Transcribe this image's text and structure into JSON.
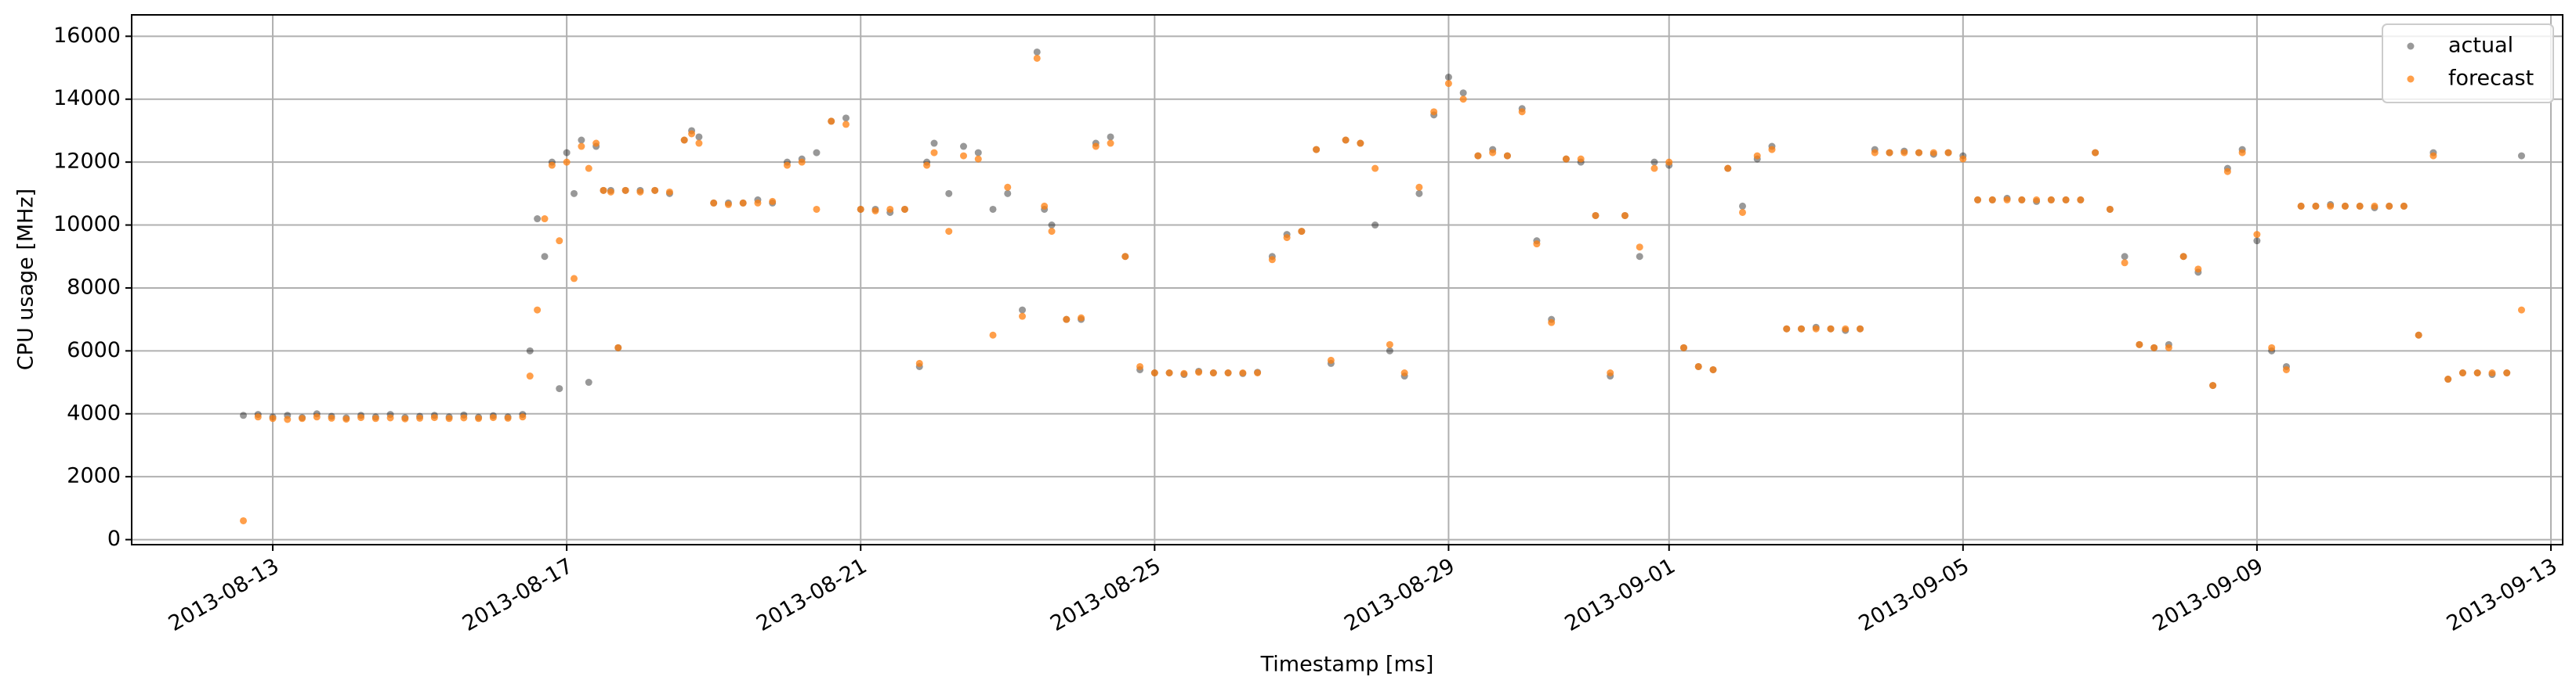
{
  "chart_data": {
    "type": "scatter",
    "xlabel": "Timestamp [ms]",
    "ylabel": "CPU usage [MHz]",
    "x": [
      1376317440000,
      1376334720000,
      1376352000000,
      1376369280000,
      1376386560000,
      1376403840000,
      1376421120000,
      1376438400000,
      1376455680000,
      1376472960000,
      1376490240000,
      1376507520000,
      1376524800000,
      1376542080000,
      1376559360000,
      1376576640000,
      1376593920000,
      1376611200000,
      1376628480000,
      1376645760000,
      1376654400000,
      1376663040000,
      1376671680000,
      1376680320000,
      1376688960000,
      1376697600000,
      1376706240000,
      1376714880000,
      1376723520000,
      1376732160000,
      1376740800000,
      1376749440000,
      1376758080000,
      1376766720000,
      1376784000000,
      1376801280000,
      1376818560000,
      1376835840000,
      1376844480000,
      1376853120000,
      1376870400000,
      1376887680000,
      1376904960000,
      1376922240000,
      1376939520000,
      1376956800000,
      1376974080000,
      1376991360000,
      1377008640000,
      1377025920000,
      1377043200000,
      1377060480000,
      1377077760000,
      1377095040000,
      1377112320000,
      1377120960000,
      1377129600000,
      1377146880000,
      1377164160000,
      1377181440000,
      1377198720000,
      1377216000000,
      1377233280000,
      1377250560000,
      1377259200000,
      1377267840000,
      1377285120000,
      1377302400000,
      1377319680000,
      1377336960000,
      1377354240000,
      1377371520000,
      1377388800000,
      1377406080000,
      1377423360000,
      1377440640000,
      1377457920000,
      1377475200000,
      1377492480000,
      1377509760000,
      1377527040000,
      1377544320000,
      1377561600000,
      1377578880000,
      1377596160000,
      1377613440000,
      1377630720000,
      1377648000000,
      1377665280000,
      1377682560000,
      1377699840000,
      1377717120000,
      1377734400000,
      1377751680000,
      1377768960000,
      1377786240000,
      1377803520000,
      1377820800000,
      1377838080000,
      1377855360000,
      1377872640000,
      1377889920000,
      1377907200000,
      1377924480000,
      1377941760000,
      1377959040000,
      1377976320000,
      1377993600000,
      1378010880000,
      1378028160000,
      1378045440000,
      1378062720000,
      1378080000000,
      1378097280000,
      1378114560000,
      1378131840000,
      1378149120000,
      1378166400000,
      1378183680000,
      1378200960000,
      1378218240000,
      1378235520000,
      1378252800000,
      1378270080000,
      1378287360000,
      1378304640000,
      1378321920000,
      1378339200000,
      1378356480000,
      1378373760000,
      1378391040000,
      1378408320000,
      1378425600000,
      1378442880000,
      1378460160000,
      1378477440000,
      1378494720000,
      1378512000000,
      1378529280000,
      1378546560000,
      1378563840000,
      1378581120000,
      1378598400000,
      1378615680000,
      1378632960000,
      1378650240000,
      1378667520000,
      1378684800000,
      1378702080000,
      1378719360000,
      1378736640000,
      1378753920000,
      1378771200000,
      1378788480000,
      1378805760000,
      1378823040000,
      1378840320000,
      1378857600000,
      1378874880000,
      1378892160000,
      1378909440000,
      1378926720000,
      1378944000000,
      1378961280000,
      1378978560000,
      1378995840000
    ],
    "series": [
      {
        "name": "actual",
        "color": "#000000",
        "values": [
          3950,
          3980,
          3900,
          3950,
          3880,
          4000,
          3920,
          3870,
          3950,
          3900,
          3980,
          3880,
          3920,
          3950,
          3900,
          3960,
          3890,
          3940,
          3900,
          3980,
          6000,
          10200,
          9000,
          12000,
          4800,
          12300,
          11000,
          12700,
          5000,
          12500,
          11100,
          11100,
          6100,
          11100,
          11100,
          11100,
          11000,
          12700,
          13000,
          12800,
          10700,
          10700,
          10700,
          10800,
          10700,
          12000,
          12100,
          12300,
          13300,
          13400,
          10500,
          10500,
          10400,
          10500,
          5500,
          12000,
          12600,
          11000,
          12500,
          12300,
          10500,
          11000,
          7300,
          15500,
          10500,
          10000,
          7000,
          7000,
          12600,
          12800,
          9000,
          5400,
          5300,
          5300,
          5250,
          5350,
          5300,
          5300,
          5280,
          5320,
          9000,
          9700,
          9800,
          12400,
          5600,
          12700,
          12600,
          10000,
          6000,
          5200,
          11000,
          13500,
          14700,
          14200,
          12200,
          12400,
          12200,
          13700,
          9500,
          7000,
          12100,
          12000,
          10300,
          5200,
          10300,
          9000,
          12000,
          11900,
          6100,
          5500,
          5400,
          11800,
          10600,
          12100,
          12500,
          6700,
          6700,
          6750,
          6700,
          6650,
          6700,
          12400,
          12300,
          12350,
          12300,
          12250,
          12300,
          12200,
          10800,
          10800,
          10850,
          10800,
          10750,
          10800,
          10800,
          10800,
          12300,
          10500,
          9000,
          6200,
          6100,
          6200,
          9000,
          8500,
          4900,
          11800,
          12400,
          9500,
          6000,
          5500,
          10600,
          10600,
          10650,
          10600,
          10600,
          10550,
          10600,
          10600,
          6500,
          12300,
          5100,
          5300,
          5300,
          5250,
          5300,
          12200
        ]
      },
      {
        "name": "forecast",
        "color": "#ff7f0e",
        "values": [
          600,
          3900,
          3850,
          3820,
          3850,
          3900,
          3860,
          3830,
          3880,
          3850,
          3870,
          3840,
          3860,
          3880,
          3850,
          3870,
          3850,
          3880,
          3860,
          3900,
          5200,
          7300,
          10200,
          11900,
          9500,
          12000,
          8300,
          12500,
          11800,
          12600,
          11100,
          11050,
          6100,
          11100,
          11050,
          11100,
          11050,
          12700,
          12900,
          12600,
          10700,
          10650,
          10700,
          10700,
          10750,
          11900,
          12000,
          10500,
          13300,
          13200,
          10500,
          10450,
          10500,
          10500,
          5600,
          11900,
          12300,
          9800,
          12200,
          12100,
          6500,
          11200,
          7100,
          15300,
          10600,
          9800,
          7000,
          7050,
          12500,
          12600,
          9000,
          5500,
          5300,
          5300,
          5280,
          5320,
          5300,
          5300,
          5300,
          5300,
          8900,
          9600,
          9800,
          12400,
          5700,
          12700,
          12600,
          11800,
          6200,
          5300,
          11200,
          13600,
          14500,
          14000,
          12200,
          12300,
          12200,
          13600,
          9400,
          6900,
          12100,
          12100,
          10300,
          5300,
          10300,
          9300,
          11800,
          12000,
          6100,
          5500,
          5400,
          11800,
          10400,
          12200,
          12400,
          6700,
          6700,
          6700,
          6700,
          6700,
          6700,
          12300,
          12300,
          12300,
          12300,
          12300,
          12300,
          12100,
          10800,
          10800,
          10800,
          10800,
          10800,
          10800,
          10800,
          10800,
          12300,
          10500,
          8800,
          6200,
          6100,
          6100,
          9000,
          8600,
          4900,
          11700,
          12300,
          9700,
          6100,
          5400,
          10600,
          10600,
          10600,
          10600,
          10600,
          10600,
          10600,
          10600,
          6500,
          12200,
          5100,
          5300,
          5300,
          5300,
          5300,
          7300
        ]
      }
    ],
    "xlim": [
      1376186112000,
      1379044224000
    ],
    "ylim": [
      -160,
      16680
    ],
    "xticks": [
      {
        "value": 1376352000000,
        "label": "2013-08-13"
      },
      {
        "value": 1376697600000,
        "label": "2013-08-17"
      },
      {
        "value": 1377043200000,
        "label": "2013-08-21"
      },
      {
        "value": 1377388800000,
        "label": "2013-08-25"
      },
      {
        "value": 1377734400000,
        "label": "2013-08-29"
      },
      {
        "value": 1377993600000,
        "label": "2013-09-01"
      },
      {
        "value": 1378339200000,
        "label": "2013-09-05"
      },
      {
        "value": 1378684800000,
        "label": "2013-09-09"
      },
      {
        "value": 1379030400000,
        "label": "2013-09-13"
      }
    ],
    "yticks": [
      0,
      2000,
      4000,
      6000,
      8000,
      10000,
      12000,
      14000,
      16000
    ],
    "grid": true,
    "legend": "upper right"
  }
}
